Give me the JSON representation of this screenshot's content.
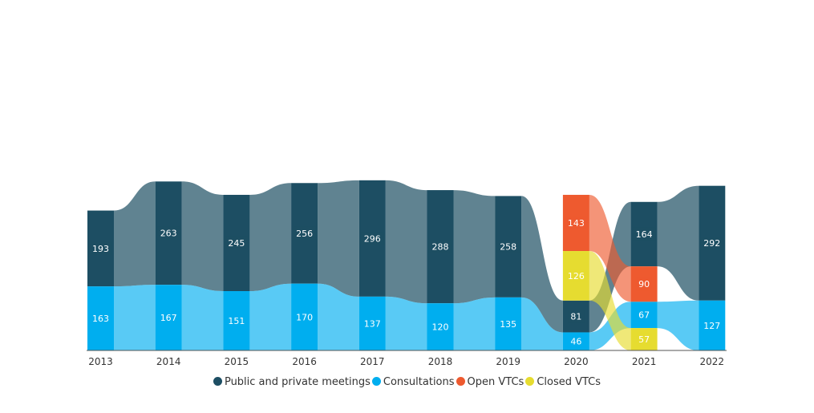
{
  "chart_data": {
    "type": "bar",
    "subtype": "stacked-bar-with-flows",
    "categories": [
      "2013",
      "2014",
      "2015",
      "2016",
      "2017",
      "2018",
      "2019",
      "2020",
      "2021",
      "2022"
    ],
    "series": [
      {
        "name": "Public and private meetings",
        "color": "#1d4e63",
        "values": [
          193,
          263,
          245,
          256,
          296,
          288,
          258,
          81,
          164,
          292
        ]
      },
      {
        "name": "Consultations",
        "color": "#00aeef",
        "values": [
          163,
          167,
          151,
          170,
          137,
          120,
          135,
          46,
          67,
          127
        ]
      },
      {
        "name": "Open VTCs",
        "color": "#ee5a2f",
        "values": [
          null,
          null,
          null,
          null,
          null,
          null,
          null,
          143,
          90,
          null
        ]
      },
      {
        "name": "Closed VTCs",
        "color": "#e6dc30",
        "values": [
          null,
          null,
          null,
          null,
          null,
          null,
          null,
          126,
          57,
          null
        ]
      }
    ],
    "legend_position": "bottom",
    "grid": false
  }
}
